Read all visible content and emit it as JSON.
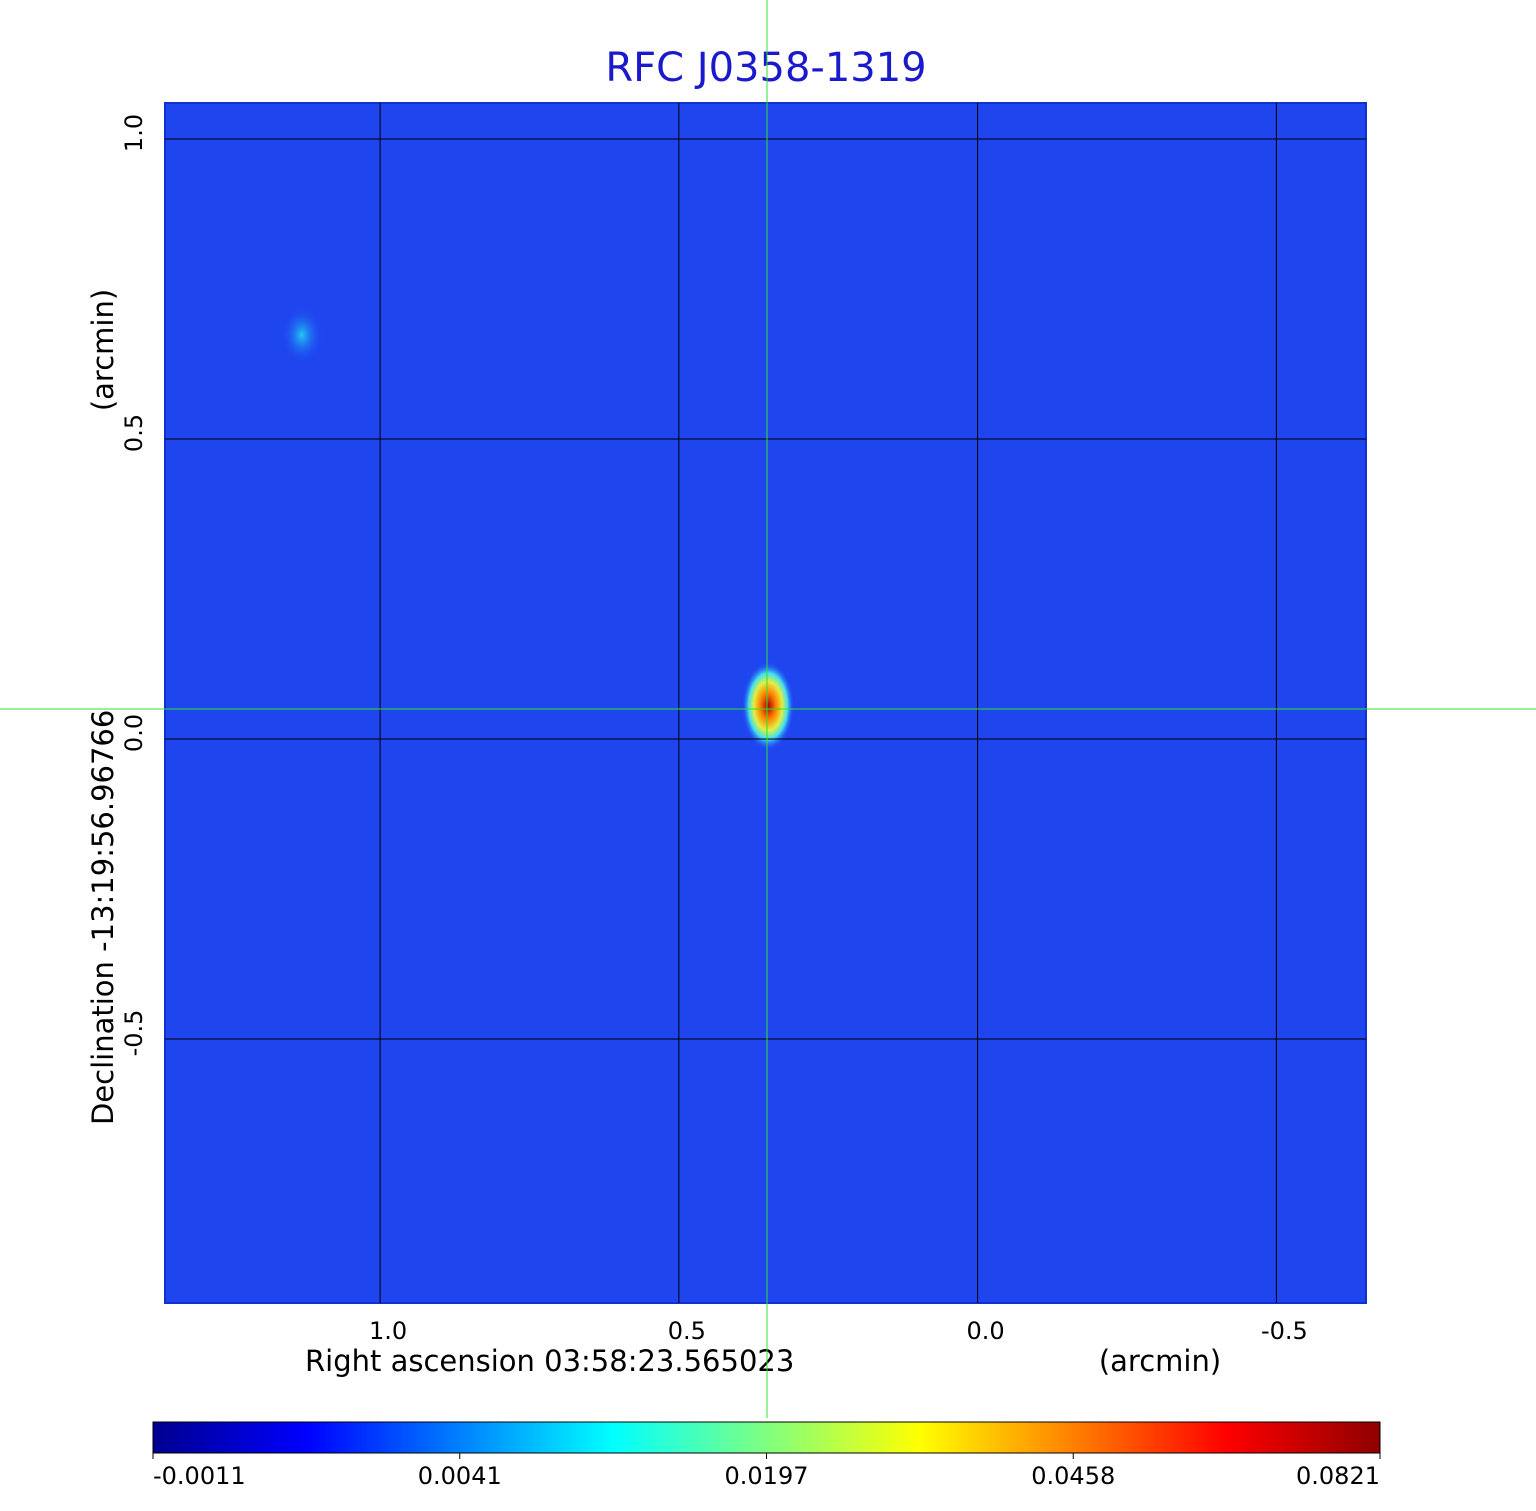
{
  "chart_data": {
    "type": "heatmap",
    "title": "RFC J0358-1319",
    "x_label": "Right ascension  03:58:23.565023",
    "x_unit_label": "(arcmin)",
    "y_label": "Declination  -13:19:56.96766",
    "y_unit_label": "(arcmin)",
    "xlim": [
      1.36,
      -0.65
    ],
    "ylim": [
      -0.94,
      1.06
    ],
    "xticks": [
      {
        "value": 1,
        "label": "1.0"
      },
      0.5,
      {
        "value": 0,
        "label": "0.0"
      },
      -0.5
    ],
    "yticks": [
      {
        "value": 1,
        "label": "1.0"
      },
      0.5,
      {
        "value": 0,
        "label": "0.0"
      },
      -0.5
    ],
    "grid": true,
    "colorbar": {
      "ticks": [
        -0.0011,
        0.0041,
        0.0197,
        0.0458,
        0.0821
      ],
      "colormap": [
        "#00008f",
        "#0000ff",
        "#0080ff",
        "#00ffff",
        "#80ff80",
        "#ffff00",
        "#ff8000",
        "#ff0000",
        "#8f0000"
      ]
    }
  }
}
